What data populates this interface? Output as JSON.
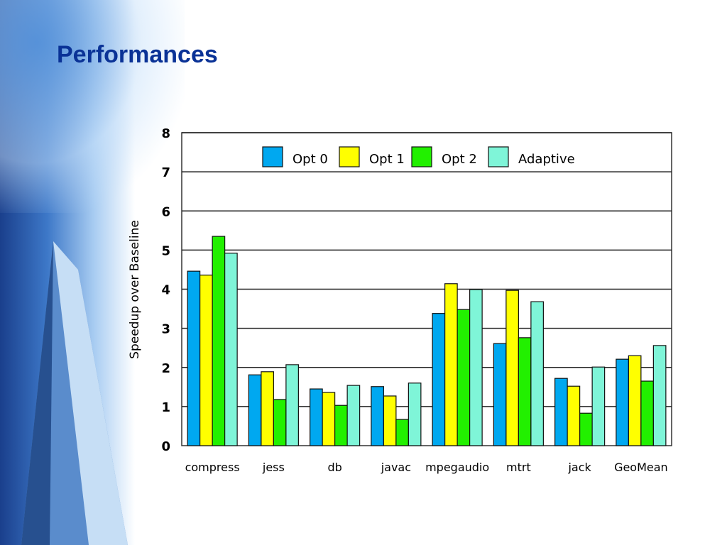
{
  "slide": {
    "title": "Performances"
  },
  "chart_data": {
    "type": "bar",
    "title": "",
    "xlabel": "",
    "ylabel": "Speedup over Baseline",
    "ylim": [
      0,
      8
    ],
    "yticks": [
      "0",
      "1",
      "2",
      "3",
      "4",
      "5",
      "6",
      "7",
      "8"
    ],
    "grid": true,
    "legend_position": "top",
    "categories": [
      "compress",
      "jess",
      "db",
      "javac",
      "mpegaudio",
      "mtrt",
      "jack",
      "GeoMean"
    ],
    "series": [
      {
        "name": "Opt 0",
        "color": "#00a8f0",
        "values": [
          4.46,
          1.81,
          1.45,
          1.51,
          3.38,
          2.61,
          1.72,
          2.21
        ]
      },
      {
        "name": "Opt 1",
        "color": "#ffff00",
        "values": [
          4.36,
          1.89,
          1.36,
          1.27,
          4.14,
          3.97,
          1.52,
          2.3
        ]
      },
      {
        "name": "Opt 2",
        "color": "#22f000",
        "values": [
          5.35,
          1.18,
          1.03,
          0.67,
          3.48,
          2.76,
          0.83,
          1.65
        ]
      },
      {
        "name": "Adaptive",
        "color": "#7ff5d8",
        "values": [
          4.92,
          2.07,
          1.54,
          1.6,
          3.99,
          3.68,
          2.01,
          2.56
        ]
      }
    ]
  }
}
